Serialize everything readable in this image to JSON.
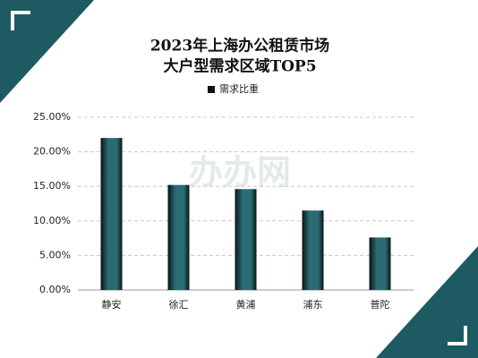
{
  "chart_data": {
    "type": "bar",
    "title": "2023年上海办公租赁市场",
    "subtitle": "大户型需求区域TOP5",
    "watermark": "办办网",
    "categories": [
      "静安",
      "徐汇",
      "黄浦",
      "浦东",
      "普陀"
    ],
    "series": [
      {
        "name": "需求比重",
        "color": "#2a6c72",
        "values": [
          22.0,
          15.2,
          14.6,
          11.5,
          7.6
        ]
      }
    ],
    "ylim": [
      0,
      25
    ],
    "yticks": [
      {
        "value": 0,
        "label": "0.00%"
      },
      {
        "value": 5,
        "label": "5.00%"
      },
      {
        "value": 10,
        "label": "10.00%"
      },
      {
        "value": 15,
        "label": "15.00%"
      },
      {
        "value": 20,
        "label": "20.00%"
      },
      {
        "value": 25,
        "label": "25.00%"
      }
    ],
    "grid": true,
    "legend": "top"
  }
}
